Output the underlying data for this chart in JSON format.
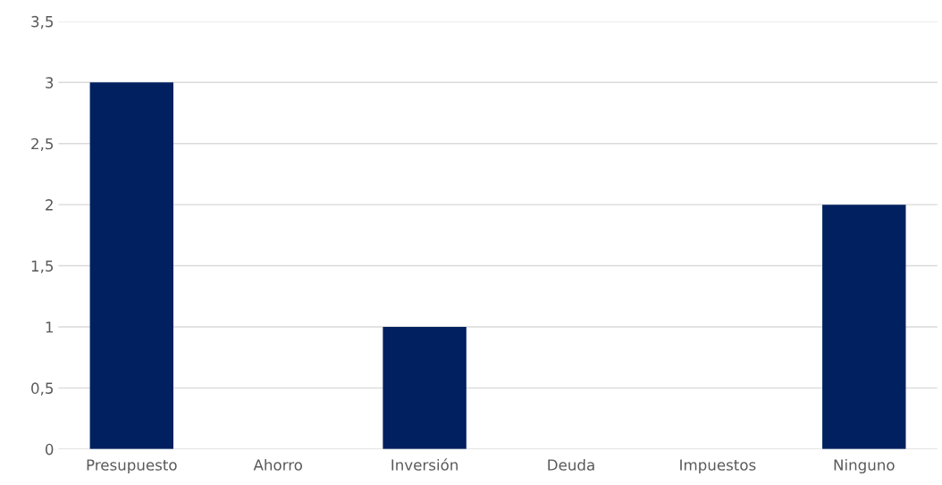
{
  "chart_data": {
    "type": "bar",
    "categories": [
      "Presupuesto",
      "Ahorro",
      "Inversión",
      "Deuda",
      "Impuestos",
      "Ninguno"
    ],
    "values": [
      3,
      0,
      1,
      0,
      0,
      2
    ],
    "color": "#002060",
    "ylim": [
      0,
      3.5
    ],
    "yticks": [
      0,
      {
        "value": 0.5,
        "label": "0,5"
      },
      1,
      {
        "value": 1.5,
        "label": "1,5"
      },
      2,
      {
        "value": 2.5,
        "label": "2,5"
      },
      3,
      {
        "value": 3.5,
        "label": "3,5"
      }
    ],
    "grid": "y"
  }
}
